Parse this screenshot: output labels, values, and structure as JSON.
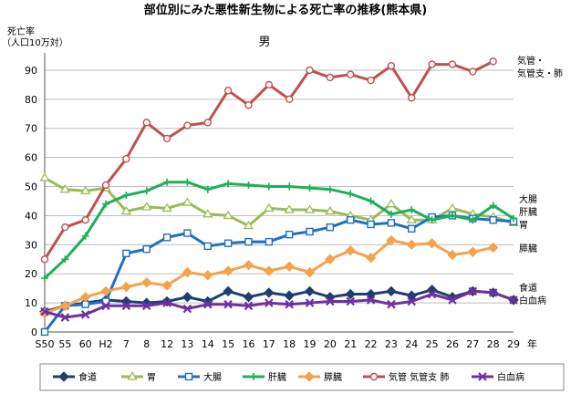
{
  "chart_data": {
    "type": "line",
    "title": "部位別にみた悪性新生物による死亡率の推移(熊本県)",
    "subtitle": "男",
    "ylabel_line1": "死亡率",
    "ylabel_line2": "（人口10万対）",
    "xlabel": "年",
    "ylim": [
      0,
      95
    ],
    "yticks": [
      0,
      10,
      20,
      30,
      40,
      50,
      60,
      70,
      80,
      90
    ],
    "grid": true,
    "legend_position": "bottom",
    "categories": [
      "S50",
      "55",
      "60",
      "H2",
      "7",
      "8",
      "12",
      "13",
      "14",
      "15",
      "16",
      "17",
      "18",
      "19",
      "20",
      "21",
      "22",
      "23",
      "24",
      "25",
      "26",
      "27",
      "28",
      "29"
    ],
    "series": [
      {
        "name": "食道",
        "color": "#1F3F6E",
        "marker": "diamond",
        "values": [
          7,
          9,
          10,
          11,
          10.5,
          10,
          10.5,
          12,
          10.5,
          14,
          12,
          13.5,
          12.5,
          14,
          12,
          13,
          13,
          14,
          12.5,
          14.5,
          12,
          14,
          13.5,
          11
        ]
      },
      {
        "name": "胃",
        "color": "#9BBB59",
        "marker": "triangle",
        "values": [
          53,
          49,
          48.5,
          49.5,
          41.5,
          43,
          42.5,
          44.5,
          40.5,
          40,
          36.5,
          42.5,
          42,
          42,
          41.5,
          40,
          38.5,
          44,
          38.5,
          38.5,
          42.5,
          40.5,
          39.5,
          37.5
        ]
      },
      {
        "name": "大腸",
        "color": "#1F6FC4",
        "marker": "square",
        "values": [
          0,
          9,
          9.5,
          10.5,
          27,
          28.5,
          32.5,
          34,
          29.5,
          30.5,
          31,
          31,
          33.5,
          34.5,
          36,
          38.5,
          37,
          37.5,
          35.5,
          39.5,
          40,
          39,
          38.5,
          38
        ]
      },
      {
        "name": "肝臓",
        "color": "#1CB05A",
        "marker": "plus",
        "values": [
          18.5,
          25,
          33,
          44,
          47,
          48.5,
          51.5,
          51.5,
          49,
          51,
          50.5,
          50,
          50,
          49.5,
          49,
          47.5,
          45,
          40.5,
          42,
          38.5,
          40,
          38.5,
          43.5,
          39
        ]
      },
      {
        "name": "膵臓",
        "color": "#F4A24C",
        "marker": "diamond",
        "values": [
          6.5,
          9,
          12,
          14,
          15.5,
          17,
          16,
          20.5,
          19.5,
          21,
          23,
          21,
          22.5,
          20.5,
          25,
          28,
          25.5,
          31.5,
          30,
          30.5,
          26.5,
          27.5,
          29,
          null
        ]
      },
      {
        "name": "気管 気管支 肺",
        "color": "#C0504D",
        "marker": "circle",
        "values": [
          25,
          36,
          38.5,
          50.5,
          59.5,
          72,
          66.5,
          71,
          72,
          83,
          78,
          85,
          80,
          90,
          87.5,
          88.5,
          86.5,
          91.5,
          80.5,
          92,
          92,
          89.5,
          93,
          null
        ]
      },
      {
        "name": "白血病",
        "color": "#7030A0",
        "marker": "x",
        "values": [
          7,
          5,
          6,
          9,
          9,
          9,
          10,
          8,
          9.5,
          9.5,
          9,
          10,
          9.5,
          10,
          10.5,
          10.5,
          11,
          9.5,
          10.5,
          13,
          11,
          14,
          13.5,
          11
        ]
      }
    ],
    "end_labels": {
      "lung": [
        "気管・",
        "気管支・肺"
      ],
      "colon": "大腸",
      "liver": "肝臓",
      "stomach": "胃",
      "pancreas": "膵臓",
      "esophagus": "食道",
      "leukemia": "白血病"
    }
  }
}
